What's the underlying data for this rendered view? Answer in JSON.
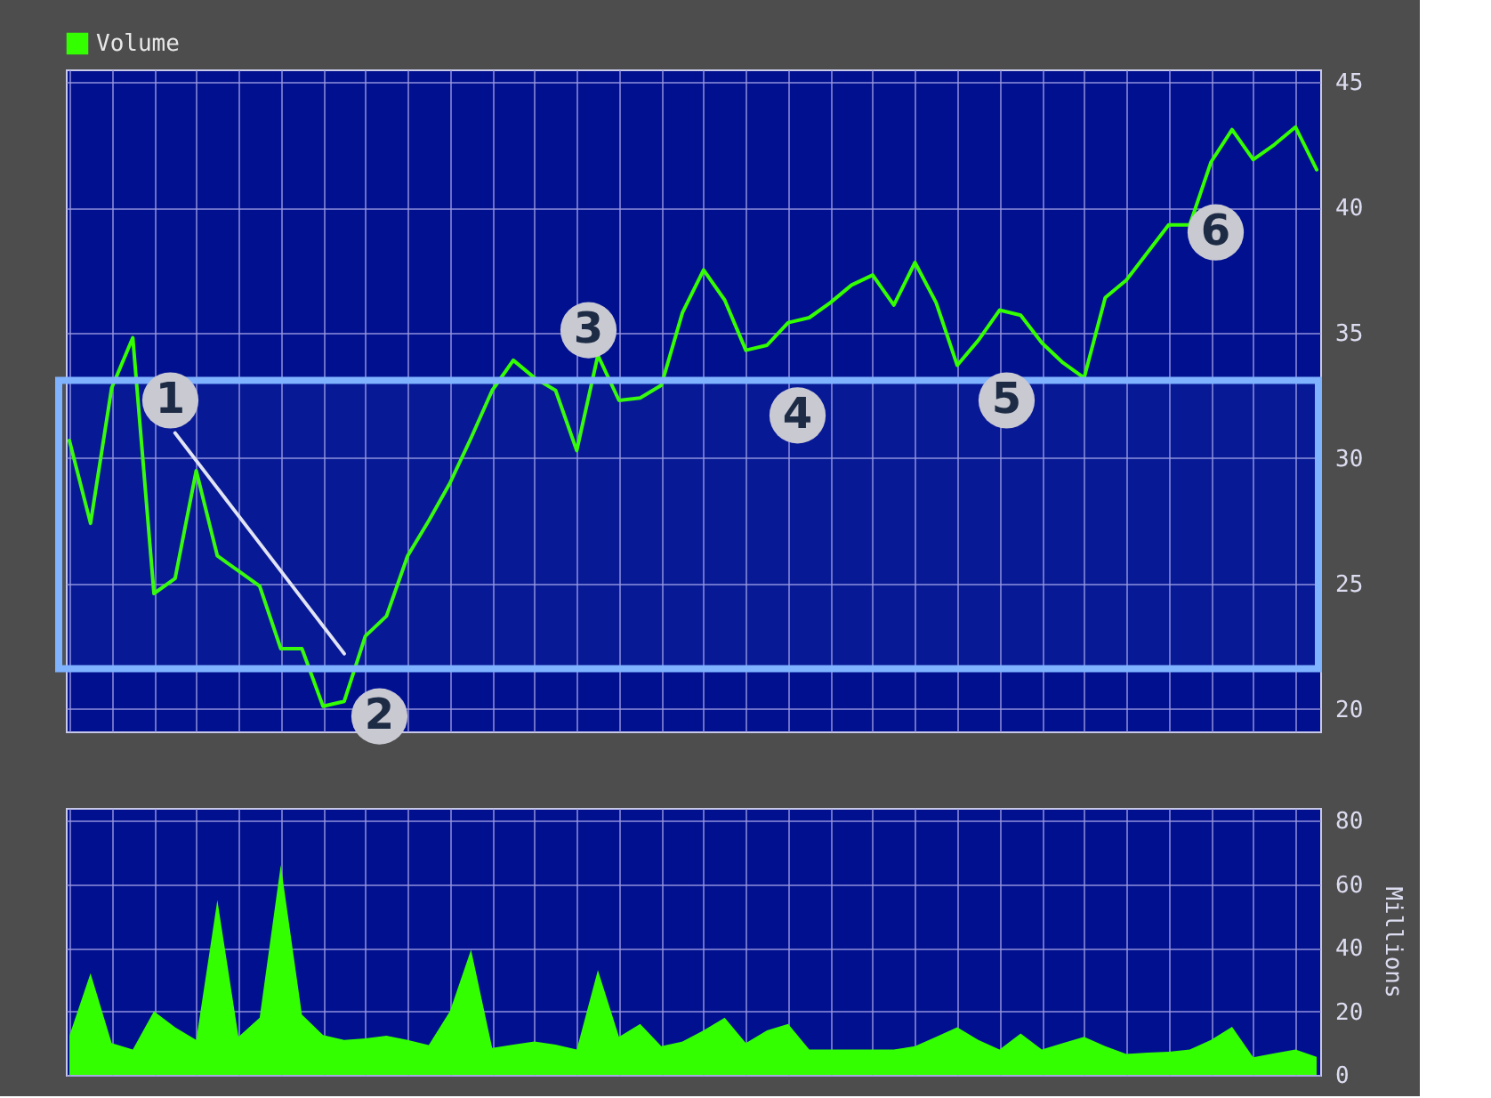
{
  "chart_data": [
    {
      "type": "line",
      "categories": [
        null,
        null,
        null,
        null,
        null,
        null,
        null,
        null,
        null,
        null,
        null,
        null,
        null,
        null,
        null,
        null,
        null,
        null,
        null,
        null,
        null,
        null,
        null,
        null,
        null,
        null,
        null,
        null,
        null,
        null,
        null,
        null,
        null,
        null,
        null,
        null,
        null,
        null,
        null,
        null,
        null,
        null,
        null,
        null,
        null,
        null,
        null,
        null,
        null,
        null,
        null,
        null,
        null,
        null,
        null,
        null,
        null,
        null,
        null,
        null
      ],
      "series": [
        {
          "color": "#33ff00",
          "values": [
            30.7,
            27.4,
            32.8,
            34.8,
            24.6,
            25.2,
            29.5,
            26.1,
            25.5,
            24.9,
            22.4,
            22.4,
            20.1,
            20.3,
            22.9,
            23.7,
            26.1,
            27.5,
            29.0,
            30.8,
            32.7,
            33.9,
            33.2,
            32.7,
            30.3,
            34.1,
            32.3,
            32.4,
            32.9,
            35.8,
            37.5,
            36.3,
            34.3,
            34.5,
            35.4,
            35.6,
            36.2,
            36.9,
            37.3,
            36.1,
            37.8,
            36.2,
            33.7,
            34.7,
            35.9,
            35.7,
            34.6,
            33.8,
            33.2,
            36.4,
            37.1,
            38.2,
            39.3,
            39.3,
            41.8,
            43.1,
            41.9,
            42.5,
            43.2,
            41.5
          ]
        },
        {
          "type": "line",
          "color": "#e8e8f4",
          "values": [
            null,
            null,
            null,
            null,
            null,
            31.0,
            29.9,
            28.8,
            27.7,
            26.6,
            25.5,
            24.4,
            23.3,
            22.2,
            null,
            null,
            null,
            null,
            null,
            null,
            null,
            null,
            null,
            null,
            null,
            null,
            null,
            null,
            null,
            null,
            null,
            null,
            null,
            null,
            null,
            null,
            null,
            null,
            null,
            null,
            null,
            null,
            null,
            null,
            null,
            null,
            null,
            null,
            null,
            null,
            null,
            null,
            null,
            null,
            null,
            null,
            null,
            null,
            null,
            null
          ]
        }
      ],
      "ylim": [
        19.1,
        45.5
      ],
      "yticks": [
        20,
        25,
        30,
        35,
        40,
        45
      ],
      "grid": true,
      "tick_labels": "y",
      "bands": [
        {
          "axis": "y",
          "from": 21.6,
          "to": 33.1,
          "color": "#7fb2ff"
        }
      ],
      "annotations": [
        {
          "text": "1",
          "y": 32.3
        },
        {
          "text": "2",
          "y": 19.7
        },
        {
          "text": "3",
          "y": 35.1
        },
        {
          "text": "4",
          "y": 31.7
        },
        {
          "text": "5",
          "y": 32.3
        },
        {
          "text": "6",
          "y": 39.0
        }
      ]
    },
    {
      "type": "area",
      "categories": [
        null,
        null,
        null,
        null,
        null,
        null,
        null,
        null,
        null,
        null,
        null,
        null,
        null,
        null,
        null,
        null,
        null,
        null,
        null,
        null,
        null,
        null,
        null,
        null,
        null,
        null,
        null,
        null,
        null,
        null,
        null,
        null,
        null,
        null,
        null,
        null,
        null,
        null,
        null,
        null,
        null,
        null,
        null,
        null,
        null,
        null,
        null,
        null,
        null,
        null,
        null,
        null,
        null,
        null,
        null,
        null,
        null,
        null,
        null,
        null
      ],
      "series": [
        {
          "name": "Volume",
          "color": "#33ff00",
          "values": [
            12.3,
            32,
            10,
            8,
            20,
            15,
            11,
            55,
            12,
            18,
            66,
            19,
            12.5,
            11,
            11.5,
            12.3,
            11,
            9.4,
            20,
            39.4,
            8.5,
            9.5,
            10.5,
            9.5,
            8,
            33,
            12,
            16,
            9,
            10.5,
            14,
            18,
            10,
            14,
            16,
            8,
            8,
            8,
            8,
            8,
            9,
            12,
            15,
            11,
            8,
            13,
            8,
            10,
            12,
            9,
            6.6,
            7,
            7.3,
            8,
            11,
            15.1,
            5.5,
            6.8,
            8,
            5.7
          ]
        }
      ],
      "ylabel": "Millions",
      "ylim": [
        0,
        84
      ],
      "yticks": [
        0,
        20,
        40,
        60,
        80
      ],
      "grid": true,
      "tick_labels": "y",
      "legend": "top left"
    }
  ]
}
